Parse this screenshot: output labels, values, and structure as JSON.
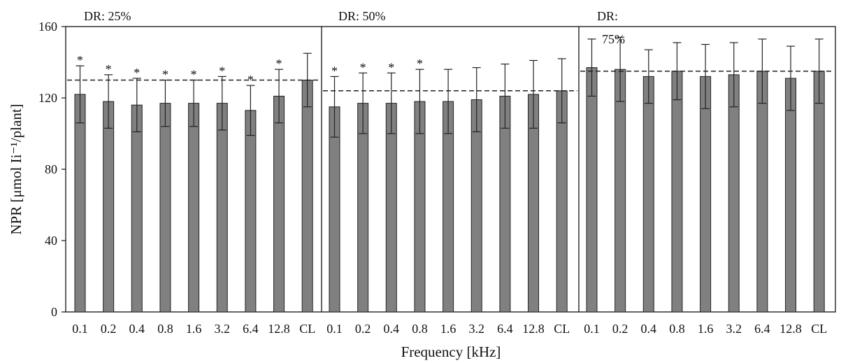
{
  "chart_data": {
    "type": "bar",
    "ylabel": "NPR [μmol Ii⁻¹/plant]",
    "xlabel": "Frequency [kHz]",
    "ylim": [
      0,
      160
    ],
    "yticks": [
      0,
      40,
      80,
      120,
      160
    ],
    "categories": [
      "0.1",
      "0.2",
      "0.4",
      "0.8",
      "1.6",
      "3.2",
      "6.4",
      "12.8",
      "CL"
    ],
    "bar_color": "#808080",
    "panels": [
      {
        "title": "DR: 25%",
        "values": [
          122,
          118,
          116,
          117,
          117,
          117,
          113,
          121,
          130
        ],
        "errors": [
          16,
          15,
          15,
          13,
          13,
          15,
          14,
          15,
          15
        ],
        "significant": [
          true,
          true,
          true,
          true,
          true,
          true,
          true,
          true,
          false
        ],
        "reference_line": 130
      },
      {
        "title": "DR: 50%",
        "values": [
          115,
          117,
          117,
          118,
          118,
          119,
          121,
          122,
          124
        ],
        "errors": [
          17,
          17,
          17,
          18,
          18,
          18,
          18,
          19,
          18
        ],
        "significant": [
          true,
          true,
          true,
          true,
          false,
          false,
          false,
          false,
          false
        ],
        "reference_line": 124
      },
      {
        "title_line1": "DR:",
        "title_line2": "75%",
        "values": [
          137,
          136,
          132,
          135,
          132,
          133,
          135,
          131,
          135
        ],
        "errors": [
          16,
          18,
          15,
          16,
          18,
          18,
          18,
          18,
          18
        ],
        "significant": [
          false,
          false,
          false,
          false,
          false,
          false,
          false,
          false,
          false
        ],
        "reference_line": 135
      }
    ],
    "significance_marker": "*"
  }
}
